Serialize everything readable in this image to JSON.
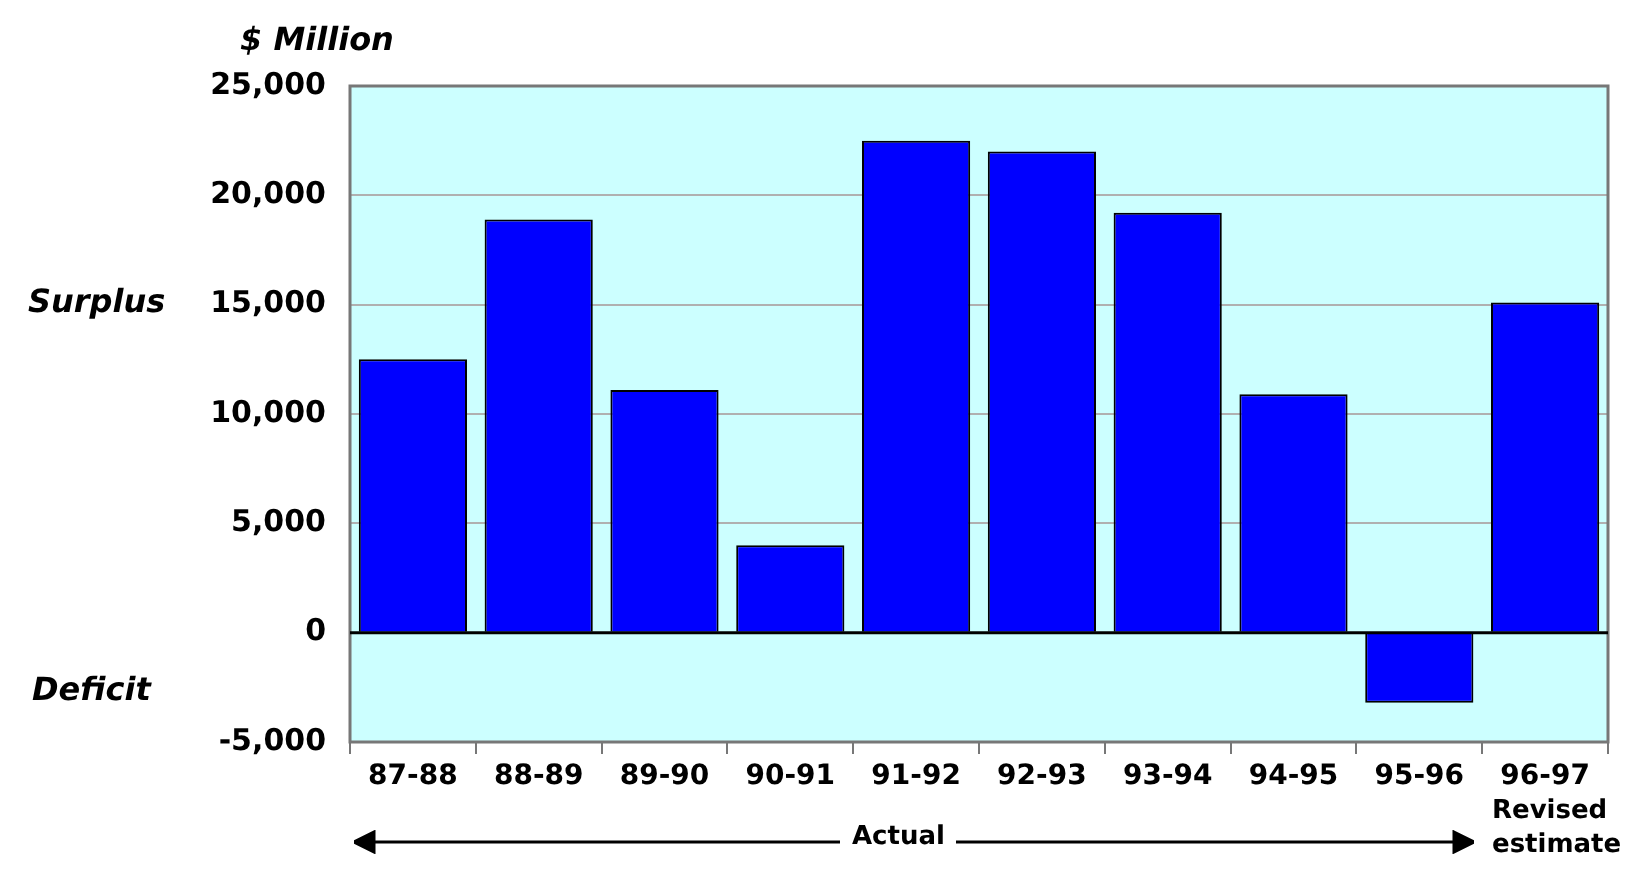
{
  "chart_data": {
    "type": "bar",
    "ylabel": "$ Million",
    "categories": [
      "87-88",
      "88-89",
      "89-90",
      "90-91",
      "91-92",
      "92-93",
      "93-94",
      "94-95",
      "95-96",
      "96-97"
    ],
    "values": [
      12500,
      18900,
      11100,
      4000,
      22500,
      22000,
      19200,
      10900,
      -3200,
      15100
    ],
    "color": "#0000ff",
    "ylim": [
      -5000,
      25000
    ],
    "yticks": [
      {
        "value": -5000,
        "label": "-5,000"
      },
      {
        "value": 0,
        "label": "0"
      },
      {
        "value": 5000,
        "label": "5,000"
      },
      {
        "value": 10000,
        "label": "10,000"
      },
      {
        "value": 15000,
        "label": "15,000"
      },
      {
        "value": 20000,
        "label": "20,000"
      },
      {
        "value": 25000,
        "label": "25,000"
      }
    ],
    "grid": "y",
    "annotations": [
      "Surplus",
      "Deficit",
      "Actual",
      "Revised estimate"
    ]
  }
}
